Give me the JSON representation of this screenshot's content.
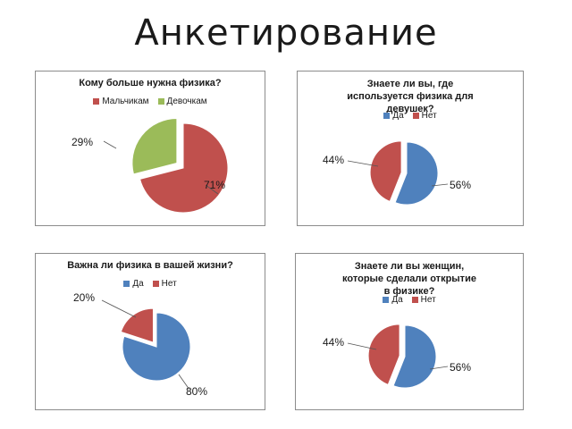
{
  "slide": {
    "title": "Анкетирование"
  },
  "colors": {
    "blue": "#4f81bd",
    "red": "#c0504d",
    "green": "#9bbb59"
  },
  "chart_data": [
    {
      "type": "pie",
      "title": "Кому больше нужна физика?",
      "categories": [
        "Мальчикам",
        "Девочкам"
      ],
      "values": [
        71,
        29
      ],
      "labels": [
        "71%",
        "29%"
      ],
      "exploded": [
        false,
        true
      ],
      "legend": "top"
    },
    {
      "type": "pie",
      "title": "Знаете ли вы, где используется физика для девушек?",
      "categories": [
        "Да",
        "Нет"
      ],
      "values": [
        56,
        44
      ],
      "labels": [
        "56%",
        "44%"
      ],
      "exploded": [
        false,
        true
      ],
      "legend": "top"
    },
    {
      "type": "pie",
      "title": "Важна ли физика в вашей жизни?",
      "categories": [
        "Да",
        "Нет"
      ],
      "values": [
        80,
        20
      ],
      "labels": [
        "80%",
        "20%"
      ],
      "exploded": [
        false,
        true
      ],
      "legend": "top"
    },
    {
      "type": "pie",
      "title": "Знаете ли вы женщин, которые сделали открытие в физике?",
      "categories": [
        "Да",
        "Нет"
      ],
      "values": [
        56,
        44
      ],
      "labels": [
        "56%",
        "44%"
      ],
      "exploded": [
        false,
        true
      ],
      "legend": "top"
    }
  ]
}
